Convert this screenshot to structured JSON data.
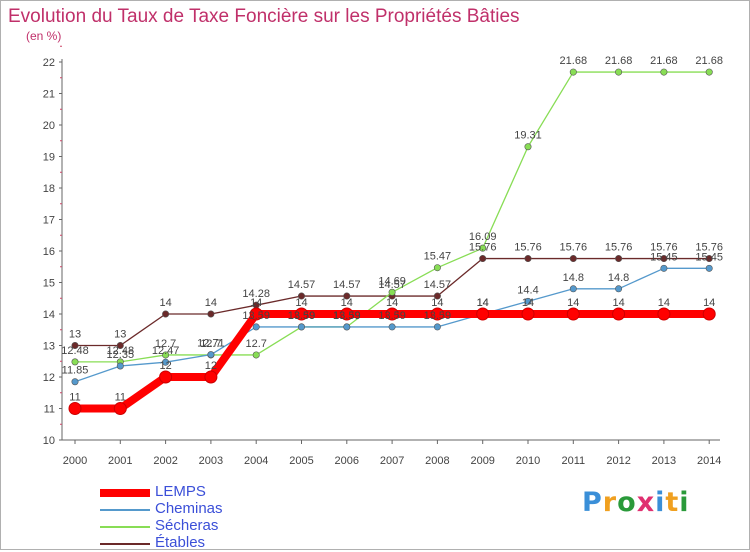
{
  "chart_data": {
    "type": "line",
    "title": "Evolution du Taux de Taxe Foncière sur les Propriétés Bâties",
    "ylabel": "(en %)",
    "xlabel": "",
    "ylim": [
      10,
      22
    ],
    "yticks": [
      "10",
      "11",
      "12",
      "13",
      "14",
      "15",
      "16",
      "17",
      "18",
      "19",
      "20",
      "21",
      "22"
    ],
    "categories": [
      "2000",
      "2001",
      "2002",
      "2003",
      "2004",
      "2005",
      "2006",
      "2007",
      "2008",
      "2009",
      "2010",
      "2011",
      "2012",
      "2013",
      "2014"
    ],
    "grid": false,
    "series": [
      {
        "name": "Étables",
        "color": "#6b2a2a",
        "values": [
          13,
          13,
          14,
          14,
          14.28,
          14.57,
          14.57,
          14.57,
          14.57,
          15.76,
          15.76,
          15.76,
          15.76,
          15.76,
          15.76
        ],
        "labels": [
          "13",
          "13",
          "14",
          "14",
          "14.28",
          "14.57",
          "14.57",
          "14.57",
          "14.57",
          "15.76",
          "15.76",
          "15.76",
          "15.76",
          "15.76",
          "15.76"
        ]
      },
      {
        "name": "Sécheras",
        "color": "#88dd55",
        "values": [
          12.48,
          12.48,
          12.7,
          12.7,
          12.7,
          13.59,
          13.59,
          14.69,
          15.47,
          16.09,
          19.31,
          21.68,
          21.68,
          21.68,
          21.68
        ],
        "labels": [
          "12.48",
          "12.48",
          "12.7",
          "12.7",
          "12.7",
          "13.59",
          "13.59",
          "14.69",
          "15.47",
          "16.09",
          "19.31",
          "21.68",
          "21.68",
          "21.68",
          "21.68"
        ]
      },
      {
        "name": "Cheminas",
        "color": "#5599cc",
        "values": [
          11.85,
          12.35,
          12.47,
          12.71,
          13.59,
          13.59,
          13.59,
          13.59,
          13.59,
          14,
          14.4,
          14.8,
          14.8,
          15.45,
          15.45
        ],
        "labels": [
          "11.85",
          "12.35",
          "12.47",
          "12.71",
          "13.59",
          "13.59",
          "13.59",
          "13.59",
          "13.59",
          "14",
          "14.4",
          "14.8",
          "14.8",
          "15.45",
          "15.45"
        ]
      },
      {
        "name": "LEMPS",
        "color": "#ff0000",
        "values": [
          11,
          11,
          12,
          12,
          14,
          14,
          14,
          14,
          14,
          14,
          14,
          14,
          14,
          14,
          14
        ],
        "labels": [
          "11",
          "11",
          "12",
          "12",
          "14",
          "14",
          "14",
          "14",
          "14",
          "14",
          "14",
          "14",
          "14",
          "14",
          "14"
        ]
      }
    ],
    "legend_order": [
      "LEMPS",
      "Cheminas",
      "Sécheras",
      "Étables"
    ]
  },
  "legend": [
    {
      "label": "LEMPS",
      "color": "#ff0000"
    },
    {
      "label": "Cheminas",
      "color": "#5599cc"
    },
    {
      "label": "Sécheras",
      "color": "#88dd55"
    },
    {
      "label": "Étables",
      "color": "#6b2a2a"
    }
  ],
  "logo": {
    "letters": [
      "P",
      "r",
      "o",
      "x",
      "i",
      "t",
      "i"
    ],
    "colors": [
      "#3a8fd8",
      "#f0a020",
      "#2a9a3a",
      "#e03070",
      "#3a8fd8",
      "#f0a020",
      "#2a9a3a"
    ]
  }
}
